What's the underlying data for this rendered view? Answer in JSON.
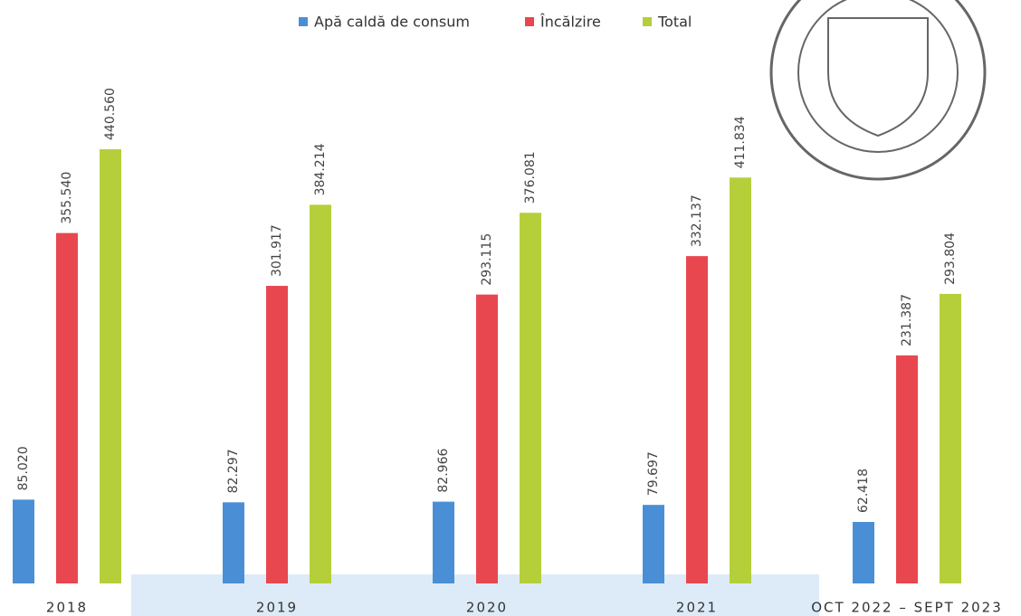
{
  "chart_data": {
    "type": "bar",
    "categories": [
      "2018",
      "2019",
      "2020",
      "2021",
      "OCT 2022 – SEPT 2023"
    ],
    "series": [
      {
        "name": "Apă caldă de consum",
        "color": "#4a8fd6",
        "values": [
          85020,
          82297,
          82966,
          79697,
          62418
        ],
        "value_labels": [
          "85.020",
          "82.297",
          "82.966",
          "79.697",
          "62.418"
        ]
      },
      {
        "name": "Încălzire",
        "color": "#e8474f",
        "values": [
          355540,
          301917,
          293115,
          332137,
          231387
        ],
        "value_labels": [
          "355.540",
          "301.917",
          "293.115",
          "332.137",
          "231.387"
        ]
      },
      {
        "name": "Total",
        "color": "#b5cf3a",
        "values": [
          440560,
          384214,
          376081,
          411834,
          293804
        ],
        "value_labels": [
          "440.560",
          "384.214",
          "376.081",
          "411.834",
          "293.804"
        ]
      }
    ],
    "legend": "top"
  }
}
